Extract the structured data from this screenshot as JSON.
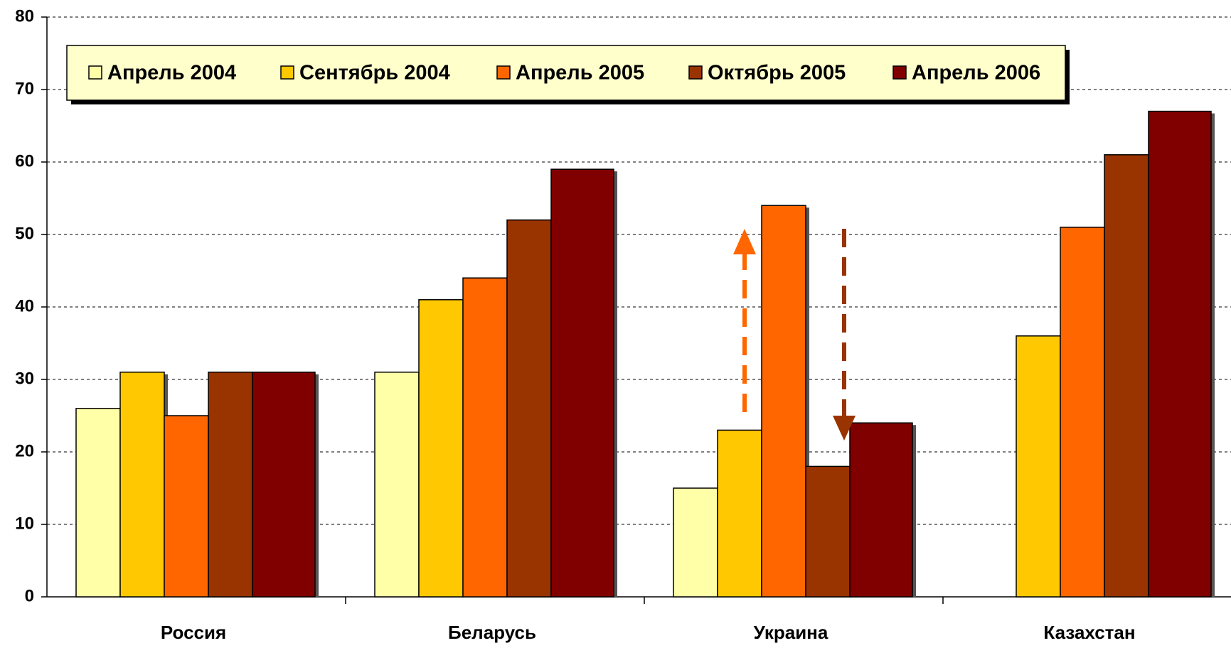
{
  "chart_data": {
    "type": "bar",
    "categories": [
      "Россия",
      "Беларусь",
      "Украина",
      "Казахстан"
    ],
    "series": [
      {
        "name": "Апрель 2004",
        "color": "#ffffa8",
        "values": [
          26,
          31,
          15,
          null
        ]
      },
      {
        "name": "Сентябрь 2004",
        "color": "#ffc800",
        "values": [
          31,
          41,
          23,
          36
        ]
      },
      {
        "name": "Апрель 2005",
        "color": "#ff6600",
        "values": [
          25,
          44,
          54,
          51
        ]
      },
      {
        "name": "Октябрь 2005",
        "color": "#993300",
        "values": [
          31,
          52,
          18,
          61
        ]
      },
      {
        "name": "Апрель 2006",
        "color": "#800000",
        "values": [
          31,
          59,
          24,
          67
        ]
      }
    ],
    "ylim": [
      0,
      80
    ],
    "yticks": [
      0,
      10,
      20,
      30,
      40,
      50,
      60,
      70,
      80
    ],
    "grid": true,
    "legend": "top"
  }
}
